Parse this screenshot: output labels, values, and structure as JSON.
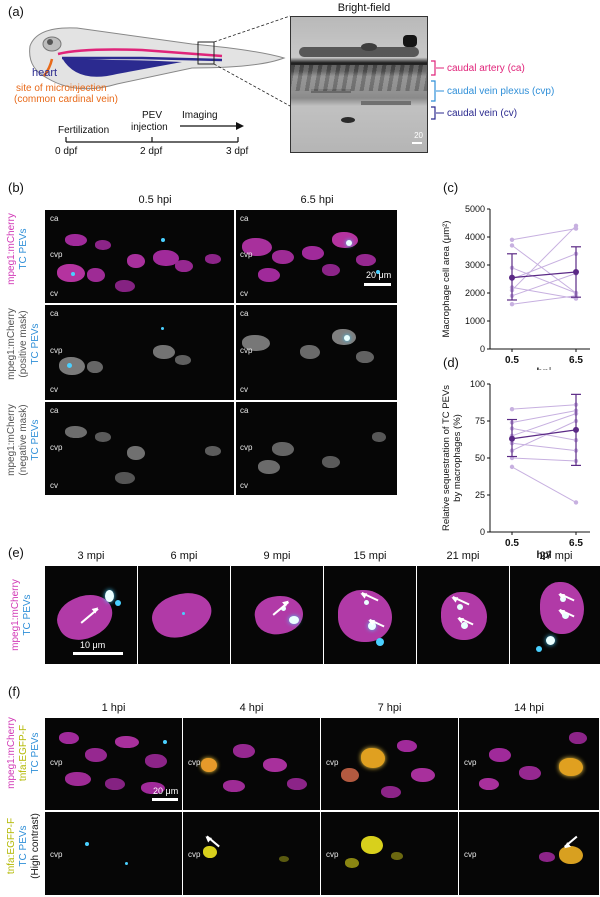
{
  "panel_a": {
    "letter": "(a)",
    "heart_label": "heart",
    "site_label_line1": "site of microinjection",
    "site_label_line2": "(common cardinal vein)",
    "timeline": {
      "events": [
        "Fertilization",
        "PEV injection",
        "Imaging"
      ],
      "pev_line1": "PEV",
      "pev_line2": "injection",
      "ticks": [
        "0 dpf",
        "2 dpf",
        "3 dpf"
      ]
    },
    "brightfield_title": "Bright-field",
    "scale_label": "20",
    "vessels": [
      {
        "label": "caudal artery (ca)",
        "color": "#e0247a"
      },
      {
        "label": "caudal vein plexus (cvp)",
        "color": "#2f8fd8"
      },
      {
        "label": "caudal vein (cv)",
        "color": "#2b2a8f"
      }
    ]
  },
  "panel_b": {
    "letter": "(b)",
    "col_headers": [
      "0.5 hpi",
      "6.5 hpi"
    ],
    "row1_label_a": "mpeg1:mCherry",
    "row1_label_b": "TC PEVs",
    "row2_label_a": "mpeg1:mCherry",
    "row2_label_b": "(positive mask)",
    "row2_label_c": "TC PEVs",
    "row3_label_a": "mpeg1:mCherry",
    "row3_label_b": "(negative mask)",
    "row3_label_c": "TC PEVs",
    "region_labels": [
      "ca",
      "cvp",
      "cv"
    ],
    "scale_label": "20 μm"
  },
  "panel_c": {
    "letter": "(c)"
  },
  "panel_d": {
    "letter": "(d)"
  },
  "panel_e": {
    "letter": "(e)",
    "col_headers": [
      "3 mpi",
      "6 mpi",
      "9 mpi",
      "15 mpi",
      "21 mpi",
      "27 mpi"
    ],
    "row_label_a": "mpeg1:mCherry",
    "row_label_b": "TC PEVs",
    "scale_label": "10 μm"
  },
  "panel_f": {
    "letter": "(f)",
    "col_headers": [
      "1 hpi",
      "4 hpi",
      "7 hpi",
      "14 hpi"
    ],
    "row1_label_a": "mpeg1:mCherry",
    "row1_label_b": "tnfa:EGFP-F",
    "row1_label_c": "TC PEVs",
    "row2_label_a": "tnfa:EGFP-F",
    "row2_label_b": "TC PEVs",
    "row2_label_c": "(High contrast)",
    "region_label": "cvp",
    "scale_label": "20 μm"
  },
  "colors": {
    "magenta": "#d23bb7",
    "cyan": "#2f8fd8",
    "yellow": "#c9cc10",
    "purple_mean": "#5b2a86",
    "purple_line": "#c7b0e0"
  },
  "chart_data": [
    {
      "type": "line",
      "panel": "c",
      "title": "",
      "xlabel": "hpi",
      "ylabel": "Macrophage cell area (μm²)",
      "categories": [
        "0.5",
        "6.5"
      ],
      "ylim": [
        0,
        5000
      ],
      "yticks": [
        0,
        1000,
        2000,
        3000,
        4000,
        5000
      ],
      "series": [
        {
          "values": [
            3900,
            4300
          ]
        },
        {
          "values": [
            3700,
            2000
          ]
        },
        {
          "values": [
            2900,
            2000
          ]
        },
        {
          "values": [
            2500,
            3400
          ]
        },
        {
          "values": [
            2200,
            1800
          ]
        },
        {
          "values": [
            2100,
            4400
          ]
        },
        {
          "values": [
            1900,
            2700
          ]
        },
        {
          "values": [
            1600,
            1900
          ]
        }
      ],
      "mean": [
        2550,
        2750
      ],
      "error": [
        [
          1750,
          3400
        ],
        [
          1850,
          3650
        ]
      ]
    },
    {
      "type": "line",
      "panel": "d",
      "title": "",
      "xlabel": "hpi",
      "ylabel": "Relative sequestration of TC PEVs by macrophages (%)",
      "categories": [
        "0.5",
        "6.5"
      ],
      "ylim": [
        0,
        100
      ],
      "yticks": [
        0,
        25,
        50,
        75,
        100
      ],
      "series": [
        {
          "values": [
            83,
            86
          ]
        },
        {
          "values": [
            74,
            82
          ]
        },
        {
          "values": [
            70,
            62
          ]
        },
        {
          "values": [
            65,
            80
          ]
        },
        {
          "values": [
            60,
            55
          ]
        },
        {
          "values": [
            55,
            75
          ]
        },
        {
          "values": [
            50,
            48
          ]
        },
        {
          "values": [
            44,
            20
          ]
        }
      ],
      "mean": [
        63,
        69
      ],
      "error": [
        [
          51,
          76
        ],
        [
          45,
          93
        ]
      ]
    }
  ]
}
